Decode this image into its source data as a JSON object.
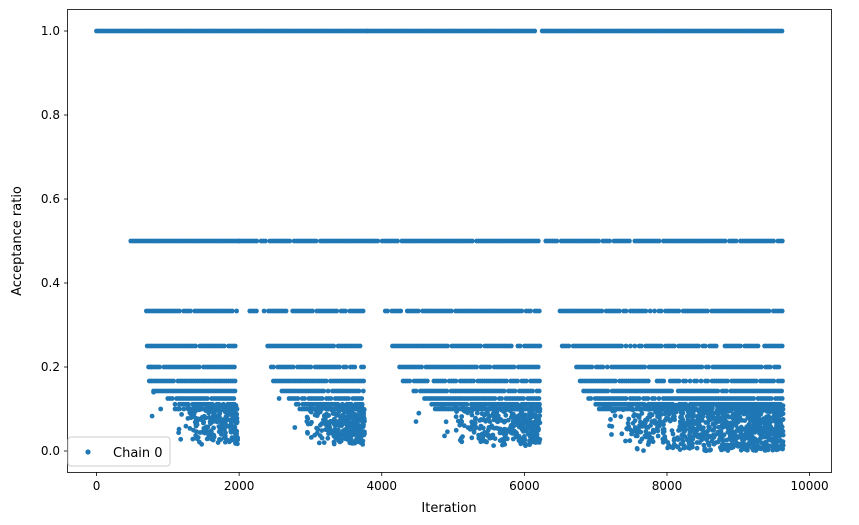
{
  "chart_data": {
    "type": "scatter",
    "title": "",
    "xlabel": "Iteration",
    "ylabel": "Acceptance ratio",
    "xlim": [
      -400,
      10300
    ],
    "ylim": [
      -0.05,
      1.05
    ],
    "xticks": [
      0,
      2000,
      4000,
      6000,
      8000,
      10000
    ],
    "xtick_labels": [
      "0",
      "2000",
      "4000",
      "6000",
      "8000",
      "10000"
    ],
    "yticks": [
      0.0,
      0.2,
      0.4,
      0.6,
      0.8,
      1.0
    ],
    "ytick_labels": [
      "0.0",
      "0.2",
      "0.4",
      "0.6",
      "0.8",
      "1.0"
    ],
    "grid": false,
    "legend": {
      "position": "lower-left",
      "entries": [
        "Chain 0"
      ]
    },
    "series": [
      {
        "name": "Chain 0",
        "color": "#1f77b4",
        "marker": "circle",
        "bands": [
          {
            "y": 1.0,
            "segments": [
              [
                0,
                2000
              ],
              [
                2000,
                3800
              ],
              [
                3800,
                6150
              ],
              [
                6250,
                9630
              ]
            ]
          },
          {
            "y": 0.5,
            "segments": [
              [
                480,
                2000
              ],
              [
                2000,
                3850
              ],
              [
                3850,
                6200
              ],
              [
                6300,
                7500
              ],
              [
                7550,
                9630
              ]
            ]
          },
          {
            "y": 0.3333,
            "segments": [
              [
                700,
                1970
              ],
              [
                2150,
                2250
              ],
              [
                2350,
                3750
              ],
              [
                4050,
                6220
              ],
              [
                6500,
                9630
              ]
            ]
          },
          {
            "y": 0.25,
            "segments": [
              [
                710,
                1970
              ],
              [
                2400,
                3750
              ],
              [
                4150,
                6220
              ],
              [
                6530,
                9630
              ]
            ]
          },
          {
            "y": 0.2,
            "segments": [
              [
                730,
                1960
              ],
              [
                2450,
                3750
              ],
              [
                4250,
                6220
              ],
              [
                6700,
                9630
              ]
            ]
          },
          {
            "y": 0.1667,
            "segments": [
              [
                740,
                1950
              ],
              [
                2450,
                3750
              ],
              [
                4300,
                6220
              ],
              [
                6750,
                9630
              ]
            ]
          },
          {
            "y": 0.1429,
            "segments": [
              [
                800,
                1950
              ],
              [
                2600,
                3750
              ],
              [
                4450,
                6220
              ],
              [
                6830,
                9630
              ]
            ]
          },
          {
            "y": 0.125,
            "segments": [
              [
                1000,
                1950
              ],
              [
                2700,
                3750
              ],
              [
                4600,
                6220
              ],
              [
                6900,
                9630
              ]
            ]
          },
          {
            "y": 0.1111,
            "segments": [
              [
                1100,
                1950
              ],
              [
                2800,
                3750
              ],
              [
                4700,
                6220
              ],
              [
                7000,
                9630
              ]
            ]
          },
          {
            "y": 0.1,
            "segments": [
              [
                1100,
                1950
              ],
              [
                2850,
                3750
              ],
              [
                4750,
                6220
              ],
              [
                7050,
                9630
              ]
            ]
          }
        ],
        "clusters": [
          {
            "x_range": [
              1100,
              1980
            ],
            "y_range": [
              0.015,
              0.11
            ],
            "count": 240
          },
          {
            "x_range": [
              2900,
              3760
            ],
            "y_range": [
              0.015,
              0.11
            ],
            "count": 320
          },
          {
            "x_range": [
              4800,
              6220
            ],
            "y_range": [
              0.012,
              0.11
            ],
            "count": 330
          },
          {
            "x_range": [
              7050,
              9630
            ],
            "y_range": [
              0.0,
              0.11
            ],
            "count": 900
          }
        ],
        "isolated_points": [
          [
            760,
            0.2
          ],
          [
            800,
            0.14
          ],
          [
            900,
            0.1
          ],
          [
            780,
            0.083
          ],
          [
            2780,
            0.056
          ],
          [
            4480,
            0.07
          ],
          [
            2560,
            0.125
          ],
          [
            4520,
            0.09
          ]
        ]
      }
    ]
  }
}
